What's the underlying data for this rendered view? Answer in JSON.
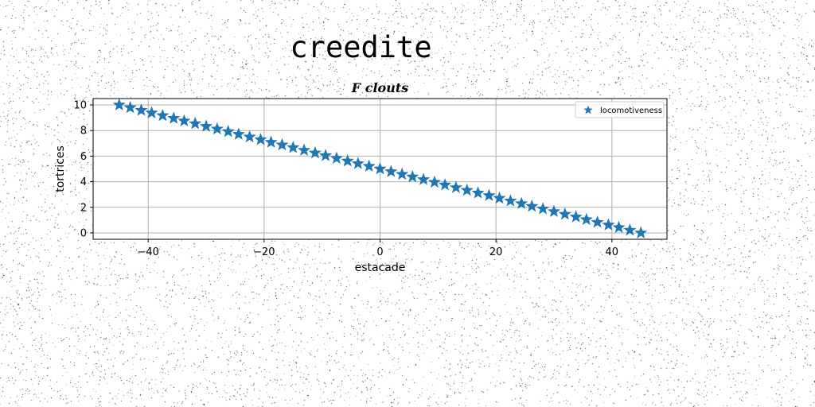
{
  "figure": {
    "suptitle": "creedite"
  },
  "chart_data": {
    "type": "scatter",
    "title": "F clouts",
    "xlabel": "estacade",
    "ylabel": "tortrices",
    "xlim": [
      -49.5,
      49.5
    ],
    "ylim": [
      -0.5,
      10.5
    ],
    "xticks": [
      -40,
      -20,
      0,
      20,
      40
    ],
    "yticks": [
      0,
      2,
      4,
      6,
      8,
      10
    ],
    "grid": true,
    "legend_position": "top-right",
    "marker": "star",
    "series": [
      {
        "name": "locomotiveness",
        "color": "#1f77b4",
        "x": [
          -45.0,
          -43.1,
          -41.2,
          -39.4,
          -37.5,
          -35.6,
          -33.8,
          -31.9,
          -30.0,
          -28.1,
          -26.2,
          -24.4,
          -22.5,
          -20.6,
          -18.8,
          -16.9,
          -15.0,
          -13.1,
          -11.2,
          -9.4,
          -7.5,
          -5.6,
          -3.8,
          -1.9,
          0.0,
          1.9,
          3.8,
          5.6,
          7.5,
          9.4,
          11.2,
          13.1,
          15.0,
          16.9,
          18.8,
          20.6,
          22.5,
          24.4,
          26.2,
          28.1,
          30.0,
          31.9,
          33.8,
          35.6,
          37.5,
          39.4,
          41.2,
          43.1,
          45.0
        ],
        "y": [
          10.0,
          9.79,
          9.58,
          9.38,
          9.17,
          8.96,
          8.75,
          8.54,
          8.33,
          8.12,
          7.92,
          7.71,
          7.5,
          7.29,
          7.08,
          6.88,
          6.67,
          6.46,
          6.25,
          6.04,
          5.83,
          5.62,
          5.42,
          5.21,
          5.0,
          4.79,
          4.58,
          4.38,
          4.17,
          3.96,
          3.75,
          3.54,
          3.33,
          3.12,
          2.92,
          2.71,
          2.5,
          2.29,
          2.08,
          1.88,
          1.67,
          1.46,
          1.25,
          1.04,
          0.83,
          0.62,
          0.42,
          0.21,
          0.0
        ]
      }
    ]
  }
}
